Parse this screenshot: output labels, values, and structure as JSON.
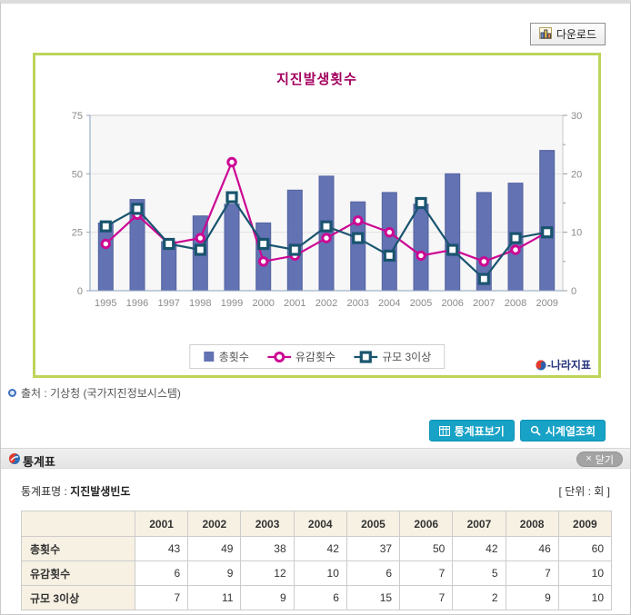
{
  "header": {
    "download_label": "다운로드"
  },
  "chart": {
    "title": "지진발생횟수",
    "border_color": "#bdd45a",
    "title_color": "#a2005e",
    "legend": [
      {
        "label": "총횟수",
        "marker": "bar",
        "color": "#6372b3"
      },
      {
        "label": "유감횟수",
        "marker": "circle",
        "color": "#cc0793"
      },
      {
        "label": "규모 3이상",
        "marker": "square",
        "color": "#19546f"
      }
    ],
    "logo_text": "-나라지표"
  },
  "chart_data": {
    "type": "bar",
    "title": "지진발생횟수",
    "categories": [
      "1995",
      "1996",
      "1997",
      "1998",
      "1999",
      "2000",
      "2001",
      "2002",
      "2003",
      "2004",
      "2005",
      "2006",
      "2007",
      "2008",
      "2009"
    ],
    "series": [
      {
        "name": "총횟수",
        "type": "bar",
        "axis": "left",
        "color": "#6372b3",
        "values": [
          29,
          39,
          21,
          32,
          37,
          29,
          43,
          49,
          38,
          42,
          37,
          50,
          42,
          46,
          60
        ]
      },
      {
        "name": "유감횟수",
        "type": "line",
        "axis": "right",
        "color": "#cc0793",
        "marker": "circle",
        "values": [
          8,
          13,
          8,
          9,
          22,
          5,
          6,
          9,
          12,
          10,
          6,
          7,
          5,
          7,
          10
        ]
      },
      {
        "name": "규모 3이상",
        "type": "line",
        "axis": "right",
        "color": "#19546f",
        "marker": "square",
        "values": [
          11,
          14,
          8,
          7,
          16,
          8,
          7,
          11,
          9,
          6,
          15,
          7,
          2,
          9,
          10
        ]
      }
    ],
    "left_axis": {
      "min": 0,
      "max": 75,
      "ticks": [
        0,
        25,
        50,
        75
      ]
    },
    "right_axis": {
      "min": 0,
      "max": 30,
      "ticks": [
        0,
        10,
        20,
        30
      ],
      "minor_step": 5
    },
    "grid": true,
    "legend_position": "bottom"
  },
  "source": {
    "text": "출처 : 기상청 (국가지진정보시스템)"
  },
  "actions": {
    "view_table_label": "통계표보기",
    "time_series_label": "시계열조회"
  },
  "panel": {
    "title": "통계표",
    "close_label": "닫기",
    "close_x": "×",
    "table_name_label": "통계표명 :",
    "table_name": "지진발생빈도",
    "unit_label": "[ 단위 : 회 ]"
  },
  "table": {
    "columns": [
      "2001",
      "2002",
      "2003",
      "2004",
      "2005",
      "2006",
      "2007",
      "2008",
      "2009"
    ],
    "rows": [
      {
        "label": "총횟수",
        "values": [
          43,
          49,
          38,
          42,
          37,
          50,
          42,
          46,
          60
        ]
      },
      {
        "label": "유감횟수",
        "values": [
          6,
          9,
          12,
          10,
          6,
          7,
          5,
          7,
          10
        ]
      },
      {
        "label": "규모 3이상",
        "values": [
          7,
          11,
          9,
          6,
          15,
          7,
          2,
          9,
          10
        ]
      }
    ]
  }
}
